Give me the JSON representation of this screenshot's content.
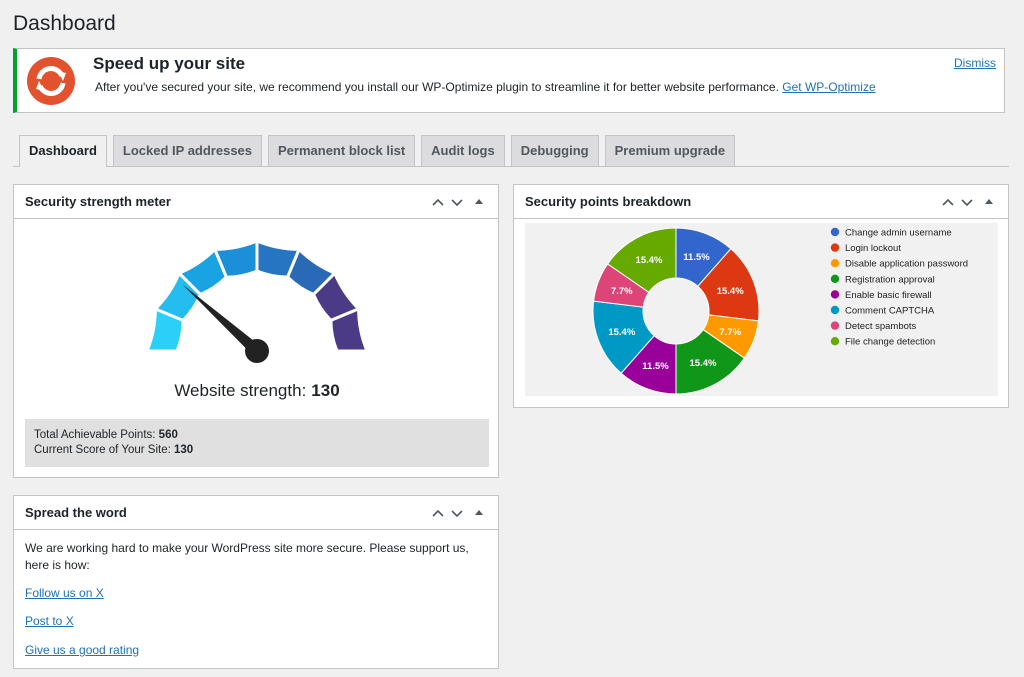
{
  "page": {
    "title": "Dashboard"
  },
  "notice": {
    "title": "Speed up your site",
    "text": "After you've secured your site, we recommend you install our WP-Optimize plugin to streamline it for better website performance.",
    "link": "Get WP-Optimize",
    "dismiss": "Dismiss"
  },
  "tabs": [
    "Dashboard",
    "Locked IP addresses",
    "Permanent block list",
    "Audit logs",
    "Debugging",
    "Premium upgrade"
  ],
  "strength_meter": {
    "title": "Security strength meter",
    "label": "Website strength:",
    "total_label": "Total Achievable Points:",
    "total": 560,
    "current_label": "Current Score of Your Site:",
    "current": 130
  },
  "chart_data": {
    "type": "pie",
    "title": "Security points breakdown",
    "categories": [
      "Change admin username",
      "Login lockout",
      "Disable application password",
      "Registration approval",
      "Enable basic firewall",
      "Comment CAPTCHA",
      "Detect spambots",
      "File change detection"
    ],
    "values": [
      11.5,
      15.4,
      7.7,
      15.4,
      11.5,
      15.4,
      7.7,
      15.4
    ],
    "value_labels": [
      "11.5%",
      "15.4%",
      "7.7%",
      "15.4%",
      "11.5%",
      "15.4%",
      "7.7%",
      "15.4%"
    ],
    "colors": [
      "#3366cc",
      "#dc3912",
      "#ff9900",
      "#109618",
      "#990099",
      "#0099c6",
      "#dd4477",
      "#66aa00"
    ]
  },
  "spread": {
    "title": "Spread the word",
    "text": "We are working hard to make your WordPress site more secure. Please support us, here is how:",
    "links": [
      "Follow us on X",
      "Post to X",
      "Give us a good rating"
    ]
  }
}
